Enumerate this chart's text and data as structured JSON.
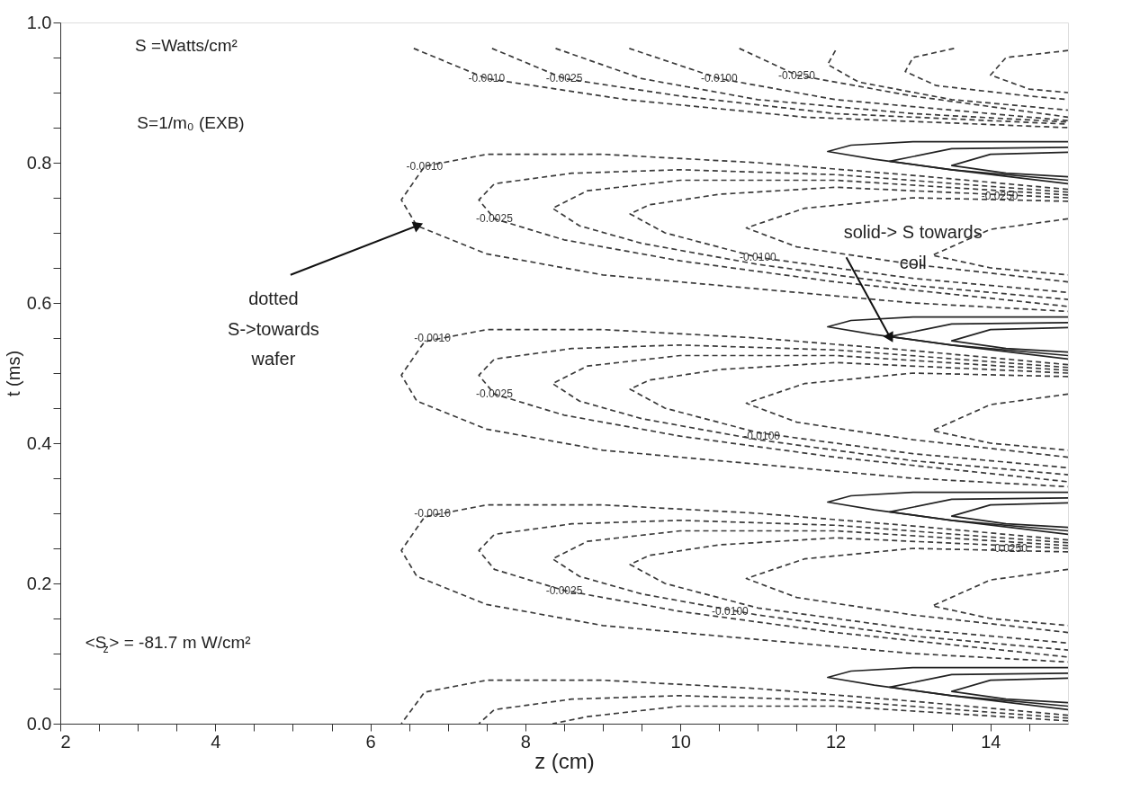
{
  "chart_data": {
    "type": "line",
    "xlabel": "z (cm)",
    "ylabel": "t (ms)",
    "xlim": [
      2,
      15
    ],
    "ylim": [
      0,
      1
    ],
    "xticks": [
      2,
      {
        "value": 2.5,
        "label": null
      },
      {
        "value": 3,
        "label": null
      },
      {
        "value": 3.5,
        "label": null
      },
      4,
      {
        "value": 4.5,
        "label": null
      },
      {
        "value": 5,
        "label": null
      },
      {
        "value": 5.5,
        "label": null
      },
      6,
      {
        "value": 6.5,
        "label": null
      },
      {
        "value": 7,
        "label": null
      },
      {
        "value": 7.5,
        "label": null
      },
      8,
      {
        "value": 8.5,
        "label": null
      },
      {
        "value": 9,
        "label": null
      },
      {
        "value": 9.5,
        "label": null
      },
      10,
      {
        "value": 10.5,
        "label": null
      },
      {
        "value": 11,
        "label": null
      },
      {
        "value": 11.5,
        "label": null
      },
      12,
      {
        "value": 12.5,
        "label": null
      },
      {
        "value": 13,
        "label": null
      },
      {
        "value": 13.5,
        "label": null
      },
      14,
      {
        "value": 14.5,
        "label": null
      }
    ],
    "yticks": [
      {
        "value": 0,
        "label": "0.0"
      },
      {
        "value": 0.05,
        "label": null
      },
      {
        "value": 0.1,
        "label": null
      },
      {
        "value": 0.15,
        "label": null
      },
      0.2,
      {
        "value": 0.25,
        "label": null
      },
      {
        "value": 0.3,
        "label": null
      },
      {
        "value": 0.35,
        "label": null
      },
      0.4,
      {
        "value": 0.45,
        "label": null
      },
      {
        "value": 0.5,
        "label": null
      },
      {
        "value": 0.55,
        "label": null
      },
      0.6,
      {
        "value": 0.65,
        "label": null
      },
      {
        "value": 0.7,
        "label": null
      },
      {
        "value": 0.75,
        "label": null
      },
      0.8,
      {
        "value": 0.85,
        "label": null
      },
      {
        "value": 0.9,
        "label": null
      },
      {
        "value": 0.95,
        "label": null
      },
      {
        "value": 1,
        "label": "1.0"
      }
    ],
    "grid": false,
    "series": [
      {
        "line_style": "dashed",
        "color": "#3a3a3a",
        "x": [
          6.56,
          7.5,
          9.3,
          11.6,
          15
        ],
        "values": [
          0.963,
          0.92,
          0.89,
          0.865,
          0.85
        ]
      },
      {
        "line_style": "dashed",
        "color": "#3a3a3a",
        "x": [
          7.57,
          8.5,
          10,
          12,
          15
        ],
        "values": [
          0.963,
          0.92,
          0.895,
          0.87,
          0.855
        ]
      },
      {
        "line_style": "dashed",
        "color": "#3a3a3a",
        "x": [
          8.39,
          9.5,
          11,
          13,
          15
        ],
        "values": [
          0.963,
          0.92,
          0.89,
          0.87,
          0.858
        ]
      },
      {
        "line_style": "dashed",
        "color": "#3a3a3a",
        "x": [
          9.34,
          10.5,
          12,
          15
        ],
        "values": [
          0.963,
          0.92,
          0.89,
          0.86
        ]
      },
      {
        "line_style": "dashed",
        "color": "#3a3a3a",
        "x": [
          10.76,
          11.5,
          13,
          15
        ],
        "values": [
          0.963,
          0.925,
          0.895,
          0.865
        ]
      },
      {
        "line_style": "dashed",
        "color": "#3a3a3a",
        "x": [
          12.0,
          11.9,
          12.3,
          13.5,
          15
        ],
        "values": [
          0.96,
          0.94,
          0.915,
          0.89,
          0.875
        ]
      },
      {
        "line_style": "dashed",
        "color": "#3a3a3a",
        "x": [
          13.53,
          13,
          12.9,
          13.3,
          14.5,
          15
        ],
        "values": [
          0.963,
          0.95,
          0.93,
          0.91,
          0.895,
          0.89
        ]
      },
      {
        "line_style": "dashed",
        "color": "#3a3a3a",
        "x": [
          15,
          14.2,
          14,
          14.5,
          15
        ],
        "values": [
          0.96,
          0.95,
          0.925,
          0.905,
          0.9
        ]
      },
      {
        "line_style": "dashed",
        "color": "#3a3a3a",
        "x": [
          15,
          13,
          11,
          9,
          7.5,
          6.7,
          6.4,
          6.6,
          7.5,
          9,
          11,
          13,
          15
        ],
        "values": [
          0.762,
          0.782,
          0.8,
          0.812,
          0.812,
          0.795,
          0.747,
          0.71,
          0.67,
          0.64,
          0.62,
          0.6,
          0.588
        ]
      },
      {
        "line_style": "dashed",
        "color": "#3a3a3a",
        "x": [
          15,
          12,
          10,
          8.6,
          7.6,
          7.4,
          7.6,
          8.5,
          10,
          12,
          15
        ],
        "values": [
          0.758,
          0.783,
          0.79,
          0.785,
          0.77,
          0.747,
          0.72,
          0.69,
          0.66,
          0.63,
          0.595
        ]
      },
      {
        "line_style": "dashed",
        "color": "#3a3a3a",
        "x": [
          15,
          12,
          10,
          8.8,
          8.35,
          8.7,
          9.5,
          11,
          13,
          15
        ],
        "values": [
          0.754,
          0.775,
          0.775,
          0.76,
          0.735,
          0.71,
          0.685,
          0.655,
          0.625,
          0.605
        ]
      },
      {
        "line_style": "dashed",
        "color": "#3a3a3a",
        "x": [
          15,
          12,
          10.5,
          9.6,
          9.35,
          9.8,
          11,
          13,
          15
        ],
        "values": [
          0.75,
          0.765,
          0.755,
          0.74,
          0.727,
          0.7,
          0.665,
          0.635,
          0.615
        ]
      },
      {
        "line_style": "dashed",
        "color": "#3a3a3a",
        "x": [
          15,
          13,
          11.6,
          10.85,
          11.5,
          13,
          15
        ],
        "values": [
          0.745,
          0.75,
          0.735,
          0.707,
          0.68,
          0.655,
          0.63
        ]
      },
      {
        "line_style": "dashed",
        "color": "#3a3a3a",
        "x": [
          15,
          14,
          13.25,
          14,
          15
        ],
        "values": [
          0.72,
          0.705,
          0.668,
          0.65,
          0.64
        ]
      },
      {
        "line_style": "solid",
        "color": "#222222",
        "x": [
          15,
          13,
          12.2,
          11.9,
          12.5,
          13.5,
          15
        ],
        "values": [
          0.83,
          0.83,
          0.825,
          0.816,
          0.805,
          0.79,
          0.77
        ]
      },
      {
        "line_style": "solid",
        "color": "#222222",
        "x": [
          15,
          13.5,
          12.7,
          13.5,
          15
        ],
        "values": [
          0.822,
          0.82,
          0.802,
          0.79,
          0.775
        ]
      },
      {
        "line_style": "solid",
        "color": "#222222",
        "x": [
          15,
          14,
          13.5,
          14.2,
          15
        ],
        "values": [
          0.815,
          0.812,
          0.796,
          0.785,
          0.78
        ]
      },
      {
        "line_style": "dashed",
        "color": "#3a3a3a",
        "x": [
          15,
          13,
          11,
          9,
          7.5,
          6.7,
          6.4,
          6.6,
          7.5,
          9,
          11,
          13,
          15
        ],
        "values": [
          0.512,
          0.532,
          0.55,
          0.562,
          0.562,
          0.545,
          0.497,
          0.46,
          0.42,
          0.39,
          0.37,
          0.35,
          0.338
        ]
      },
      {
        "line_style": "dashed",
        "color": "#3a3a3a",
        "x": [
          15,
          12,
          10,
          8.6,
          7.6,
          7.4,
          7.6,
          8.5,
          10,
          12,
          15
        ],
        "values": [
          0.508,
          0.533,
          0.54,
          0.535,
          0.52,
          0.497,
          0.47,
          0.44,
          0.41,
          0.38,
          0.345
        ]
      },
      {
        "line_style": "dashed",
        "color": "#3a3a3a",
        "x": [
          15,
          12,
          10,
          8.8,
          8.35,
          8.7,
          9.5,
          11,
          13,
          15
        ],
        "values": [
          0.504,
          0.525,
          0.525,
          0.51,
          0.485,
          0.46,
          0.435,
          0.405,
          0.375,
          0.355
        ]
      },
      {
        "line_style": "dashed",
        "color": "#3a3a3a",
        "x": [
          15,
          12,
          10.5,
          9.6,
          9.35,
          9.8,
          11,
          13,
          15
        ],
        "values": [
          0.5,
          0.515,
          0.505,
          0.49,
          0.477,
          0.45,
          0.415,
          0.385,
          0.365
        ]
      },
      {
        "line_style": "dashed",
        "color": "#3a3a3a",
        "x": [
          15,
          13,
          11.6,
          10.85,
          11.5,
          13,
          15
        ],
        "values": [
          0.495,
          0.5,
          0.485,
          0.457,
          0.43,
          0.405,
          0.38
        ]
      },
      {
        "line_style": "dashed",
        "color": "#3a3a3a",
        "x": [
          15,
          14,
          13.25,
          14,
          15
        ],
        "values": [
          0.47,
          0.455,
          0.418,
          0.4,
          0.39
        ]
      },
      {
        "line_style": "solid",
        "color": "#222222",
        "x": [
          15,
          13,
          12.2,
          11.9,
          12.5,
          13.5,
          15
        ],
        "values": [
          0.58,
          0.58,
          0.575,
          0.566,
          0.555,
          0.54,
          0.52
        ]
      },
      {
        "line_style": "solid",
        "color": "#222222",
        "x": [
          15,
          13.5,
          12.7,
          13.5,
          15
        ],
        "values": [
          0.572,
          0.57,
          0.552,
          0.54,
          0.525
        ]
      },
      {
        "line_style": "solid",
        "color": "#222222",
        "x": [
          15,
          14,
          13.5,
          14.2,
          15
        ],
        "values": [
          0.565,
          0.562,
          0.546,
          0.535,
          0.53
        ]
      },
      {
        "line_style": "dashed",
        "color": "#3a3a3a",
        "x": [
          15,
          13,
          11,
          9,
          7.5,
          6.7,
          6.4,
          6.6,
          7.5,
          9,
          11,
          13,
          15
        ],
        "values": [
          0.262,
          0.282,
          0.3,
          0.312,
          0.312,
          0.295,
          0.247,
          0.21,
          0.17,
          0.14,
          0.12,
          0.1,
          0.088
        ]
      },
      {
        "line_style": "dashed",
        "color": "#3a3a3a",
        "x": [
          15,
          12,
          10,
          8.6,
          7.6,
          7.4,
          7.6,
          8.5,
          10,
          12,
          15
        ],
        "values": [
          0.258,
          0.283,
          0.29,
          0.285,
          0.27,
          0.247,
          0.22,
          0.19,
          0.16,
          0.13,
          0.095
        ]
      },
      {
        "line_style": "dashed",
        "color": "#3a3a3a",
        "x": [
          15,
          12,
          10,
          8.8,
          8.35,
          8.7,
          9.5,
          11,
          13,
          15
        ],
        "values": [
          0.254,
          0.275,
          0.275,
          0.26,
          0.235,
          0.21,
          0.185,
          0.155,
          0.125,
          0.105
        ]
      },
      {
        "line_style": "dashed",
        "color": "#3a3a3a",
        "x": [
          15,
          12,
          10.5,
          9.6,
          9.35,
          9.8,
          11,
          13,
          15
        ],
        "values": [
          0.25,
          0.265,
          0.255,
          0.24,
          0.227,
          0.2,
          0.165,
          0.135,
          0.115
        ]
      },
      {
        "line_style": "dashed",
        "color": "#3a3a3a",
        "x": [
          15,
          13,
          11.6,
          10.85,
          11.5,
          13,
          15
        ],
        "values": [
          0.245,
          0.25,
          0.235,
          0.207,
          0.18,
          0.155,
          0.13
        ]
      },
      {
        "line_style": "dashed",
        "color": "#3a3a3a",
        "x": [
          15,
          14,
          13.25,
          14,
          15
        ],
        "values": [
          0.22,
          0.205,
          0.168,
          0.15,
          0.14
        ]
      },
      {
        "line_style": "solid",
        "color": "#222222",
        "x": [
          15,
          13,
          12.2,
          11.9,
          12.5,
          13.5,
          15
        ],
        "values": [
          0.33,
          0.33,
          0.325,
          0.316,
          0.305,
          0.29,
          0.27
        ]
      },
      {
        "line_style": "solid",
        "color": "#222222",
        "x": [
          15,
          13.5,
          12.7,
          13.5,
          15
        ],
        "values": [
          0.322,
          0.32,
          0.302,
          0.29,
          0.275
        ]
      },
      {
        "line_style": "solid",
        "color": "#222222",
        "x": [
          15,
          14,
          13.5,
          14.2,
          15
        ],
        "values": [
          0.315,
          0.312,
          0.296,
          0.285,
          0.28
        ]
      },
      {
        "line_style": "dashed",
        "color": "#3a3a3a",
        "x": [
          15,
          13,
          11,
          9,
          7.5,
          6.7,
          6.4
        ],
        "values": [
          0.012,
          0.032,
          0.05,
          0.062,
          0.062,
          0.045,
          0.0
        ]
      },
      {
        "line_style": "dashed",
        "color": "#3a3a3a",
        "x": [
          15,
          12,
          10,
          8.6,
          7.6,
          7.4
        ],
        "values": [
          0.008,
          0.033,
          0.04,
          0.035,
          0.02,
          0.0
        ]
      },
      {
        "line_style": "dashed",
        "color": "#3a3a3a",
        "x": [
          15,
          12,
          10,
          8.8,
          8.35
        ],
        "values": [
          0.004,
          0.025,
          0.025,
          0.01,
          0.0
        ]
      },
      {
        "line_style": "solid",
        "color": "#222222",
        "x": [
          15,
          13,
          12.2,
          11.9,
          12.5,
          13.5,
          15
        ],
        "values": [
          0.08,
          0.08,
          0.075,
          0.066,
          0.055,
          0.04,
          0.02
        ]
      },
      {
        "line_style": "solid",
        "color": "#222222",
        "x": [
          15,
          13.5,
          12.7,
          13.5,
          15
        ],
        "values": [
          0.072,
          0.07,
          0.052,
          0.04,
          0.025
        ]
      },
      {
        "line_style": "solid",
        "color": "#222222",
        "x": [
          15,
          14,
          13.5,
          14.2,
          15
        ],
        "values": [
          0.065,
          0.062,
          0.046,
          0.035,
          0.03
        ]
      }
    ],
    "annotations": [
      "S =Watts/cm²",
      "S=1/m₀ (EXB)",
      "<S$_{z}$> = -81.7 m W/cm²",
      {
        "text": "dotted\nS->towards\nwafer",
        "x": 6.6,
        "y": 0.71
      },
      {
        "text": "solid-> S towards\ncoil",
        "x": 12.7,
        "y": 0.552
      },
      {
        "text": "-0.0010",
        "x": 7.5,
        "y": 0.92
      },
      {
        "text": "-0.0025",
        "x": 8.5,
        "y": 0.92
      },
      {
        "text": "-0.0100",
        "x": 10.5,
        "y": 0.92
      },
      {
        "text": "-0.0250",
        "x": 11.5,
        "y": 0.925
      },
      {
        "text": "-0.0010",
        "x": 6.7,
        "y": 0.795
      },
      {
        "text": "-0.0025",
        "x": 7.6,
        "y": 0.72
      },
      {
        "text": "-0.0100",
        "x": 11,
        "y": 0.665
      },
      {
        "text": "-0.0250",
        "x": 14.12,
        "y": 0.752
      },
      {
        "text": "-0.0010",
        "x": 6.8,
        "y": 0.55
      },
      {
        "text": "-0.0025",
        "x": 7.6,
        "y": 0.47
      },
      {
        "text": "-0.0100",
        "x": 11.05,
        "y": 0.41
      },
      {
        "text": "-0.0010",
        "x": 6.8,
        "y": 0.3
      },
      {
        "text": "-0.0025",
        "x": 8.5,
        "y": 0.19
      },
      {
        "text": "-0.0100",
        "x": 10.64,
        "y": 0.16
      },
      {
        "text": "-0.0250",
        "x": 14.24,
        "y": 0.25
      }
    ]
  }
}
